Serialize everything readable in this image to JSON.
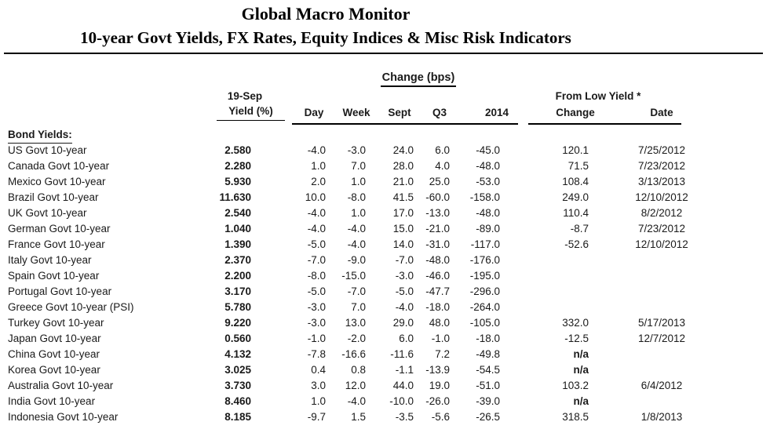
{
  "colors": {
    "background": "#ffffff",
    "text": "#1a1a1a",
    "rule": "#000000"
  },
  "header": {
    "title": "Global Macro Monitor",
    "subtitle": "10-year Govt Yields, FX Rates, Equity Indices & Misc Risk Indicators"
  },
  "table": {
    "group_header": "Change (bps)",
    "col_date_label": "19-Sep",
    "col_yield_label": "Yield (%)",
    "change_cols": [
      "Day",
      "Week",
      "Sept",
      "Q3",
      "2014"
    ],
    "from_low": {
      "label": "From Low Yield  *",
      "change_label": "Change",
      "date_label": "Date"
    },
    "section_label": "Bond Yields:",
    "rows": [
      {
        "name": "US Govt 10-year",
        "yield": "2.580",
        "day": "-4.0",
        "week": "-3.0",
        "sept": "24.0",
        "q3": "6.0",
        "y2014": "-45.0",
        "low_change": "120.1",
        "low_date": "7/25/2012"
      },
      {
        "name": "Canada Govt 10-year",
        "yield": "2.280",
        "day": "1.0",
        "week": "7.0",
        "sept": "28.0",
        "q3": "4.0",
        "y2014": "-48.0",
        "low_change": "71.5",
        "low_date": "7/23/2012"
      },
      {
        "name": "Mexico Govt 10-year",
        "yield": "5.930",
        "day": "2.0",
        "week": "1.0",
        "sept": "21.0",
        "q3": "25.0",
        "y2014": "-53.0",
        "low_change": "108.4",
        "low_date": "3/13/2013"
      },
      {
        "name": "Brazil Govt 10-year",
        "yield": "11.630",
        "day": "10.0",
        "week": "-8.0",
        "sept": "41.5",
        "q3": "-60.0",
        "y2014": "-158.0",
        "low_change": "249.0",
        "low_date": "12/10/2012"
      },
      {
        "name": "UK Govt 10-year",
        "yield": "2.540",
        "day": "-4.0",
        "week": "1.0",
        "sept": "17.0",
        "q3": "-13.0",
        "y2014": "-48.0",
        "low_change": "110.4",
        "low_date": "8/2/2012"
      },
      {
        "name": "German Govt 10-year",
        "yield": "1.040",
        "day": "-4.0",
        "week": "-4.0",
        "sept": "15.0",
        "q3": "-21.0",
        "y2014": "-89.0",
        "low_change": "-8.7",
        "low_date": "7/23/2012"
      },
      {
        "name": "France Govt 10-year",
        "yield": "1.390",
        "day": "-5.0",
        "week": "-4.0",
        "sept": "14.0",
        "q3": "-31.0",
        "y2014": "-117.0",
        "low_change": "-52.6",
        "low_date": "12/10/2012"
      },
      {
        "name": "Italy Govt 10-year",
        "yield": "2.370",
        "day": "-7.0",
        "week": "-9.0",
        "sept": "-7.0",
        "q3": "-48.0",
        "y2014": "-176.0",
        "low_change": "",
        "low_date": ""
      },
      {
        "name": "Spain Govt 10-year",
        "yield": "2.200",
        "day": "-8.0",
        "week": "-15.0",
        "sept": "-3.0",
        "q3": "-46.0",
        "y2014": "-195.0",
        "low_change": "",
        "low_date": ""
      },
      {
        "name": "Portugal Govt 10-year",
        "yield": "3.170",
        "day": "-5.0",
        "week": "-7.0",
        "sept": "-5.0",
        "q3": "-47.7",
        "y2014": "-296.0",
        "low_change": "",
        "low_date": ""
      },
      {
        "name": "Greece Govt 10-year (PSI)",
        "yield": "5.780",
        "day": "-3.0",
        "week": "7.0",
        "sept": "-4.0",
        "q3": "-18.0",
        "y2014": "-264.0",
        "low_change": "",
        "low_date": ""
      },
      {
        "name": "Turkey Govt 10-year",
        "yield": "9.220",
        "day": "-3.0",
        "week": "13.0",
        "sept": "29.0",
        "q3": "48.0",
        "y2014": "-105.0",
        "low_change": "332.0",
        "low_date": "5/17/2013"
      },
      {
        "name": "Japan Govt 10-year",
        "yield": "0.560",
        "day": "-1.0",
        "week": "-2.0",
        "sept": "6.0",
        "q3": "-1.0",
        "y2014": "-18.0",
        "low_change": "-12.5",
        "low_date": "12/7/2012"
      },
      {
        "name": "China Govt 10-year",
        "yield": "4.132",
        "day": "-7.8",
        "week": "-16.6",
        "sept": "-11.6",
        "q3": "7.2",
        "y2014": "-49.8",
        "low_change": "n/a",
        "low_date": ""
      },
      {
        "name": "Korea Govt 10-year",
        "yield": "3.025",
        "day": "0.4",
        "week": "0.8",
        "sept": "-1.1",
        "q3": "-13.9",
        "y2014": "-54.5",
        "low_change": "n/a",
        "low_date": ""
      },
      {
        "name": "Australia Govt 10-year",
        "yield": "3.730",
        "day": "3.0",
        "week": "12.0",
        "sept": "44.0",
        "q3": "19.0",
        "y2014": "-51.0",
        "low_change": "103.2",
        "low_date": "6/4/2012"
      },
      {
        "name": "India Govt 10-year",
        "yield": "8.460",
        "day": "1.0",
        "week": "-4.0",
        "sept": "-10.0",
        "q3": "-26.0",
        "y2014": "-39.0",
        "low_change": "n/a",
        "low_date": ""
      },
      {
        "name": "Indonesia Govt 10-year",
        "yield": "8.185",
        "day": "-9.7",
        "week": "1.5",
        "sept": "-3.5",
        "q3": "-5.6",
        "y2014": "-26.5",
        "low_change": "318.5",
        "low_date": "1/8/2013"
      }
    ]
  }
}
